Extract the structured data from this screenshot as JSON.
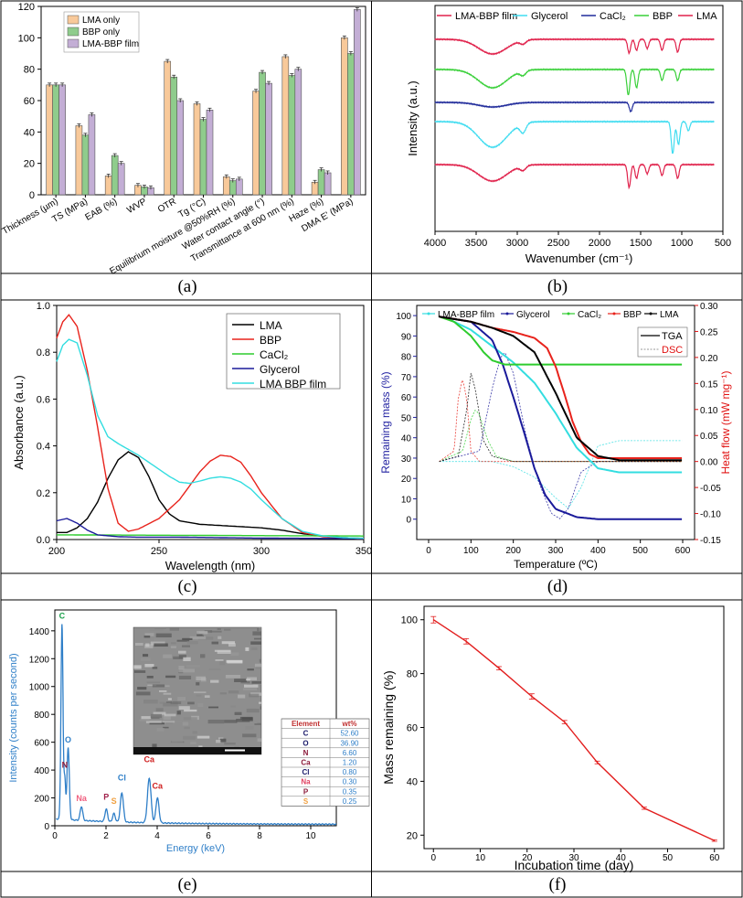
{
  "captions": [
    "(a)",
    "(b)",
    "(c)",
    "(d)",
    "(e)",
    "(f)"
  ],
  "colors": {
    "lma_only": "#f8c99a",
    "bbp_only": "#8fcc8c",
    "lma_bbp_film": "#c3aed5",
    "lma": "#000000",
    "bbp": "#e8231c",
    "cacl2": "#2ecc2e",
    "glycerol": "#1a1a9a",
    "film": "#33dde0",
    "ftir_lma": "#e0204a",
    "ftir_bbp": "#39d039",
    "ftir_cacl2": "#1f2a9a",
    "ftir_glycerol": "#3fdcf0",
    "ftir_film": "#e0204a",
    "tga_axis": "#1f1fa0",
    "dsc_axis": "#e01010",
    "eds_line": "#2f7fc8",
    "degr_line": "#e21d1d"
  },
  "chart_data": [
    {
      "id": "a",
      "type": "bar",
      "categories": [
        "Thickness (µm)",
        "TS (MPa)",
        "EAB (%)",
        "WVP",
        "OTR",
        "Tg (°C)",
        "Equilibrium moisture @50%RH (%)",
        "Water contact angle (°)",
        "Transmittance at 600 nm (%)",
        "Haze (%)",
        "DMA E' (MPa)"
      ],
      "series": [
        {
          "name": "LMA only",
          "values": [
            70,
            44,
            12,
            6,
            85,
            58,
            11.5,
            66,
            88,
            8,
            100
          ]
        },
        {
          "name": "BBP only",
          "values": [
            70,
            38,
            25,
            5,
            75,
            48,
            9,
            78,
            76,
            16,
            90
          ]
        },
        {
          "name": "LMA-BBP film",
          "values": [
            70,
            51,
            20,
            4.5,
            60,
            54,
            10,
            71,
            80,
            14,
            118
          ]
        }
      ],
      "ylim": [
        0,
        120
      ],
      "yticks": [
        0,
        20,
        40,
        60,
        80,
        100,
        120
      ],
      "legend": "top-left"
    },
    {
      "id": "b",
      "type": "line",
      "xlabel": "Wavenumber (cm⁻¹)",
      "ylabel": "Intensity (a.u.)",
      "xlim": [
        4000,
        500
      ],
      "xticks": [
        4000,
        3500,
        3000,
        2500,
        2000,
        1500,
        1000,
        500
      ],
      "series": [
        {
          "name": "LMA-BBP film"
        },
        {
          "name": "Glycerol"
        },
        {
          "name": "CaCl₂"
        },
        {
          "name": "BBP"
        },
        {
          "name": "LMA"
        }
      ],
      "legend": "top"
    },
    {
      "id": "c",
      "type": "line",
      "xlabel": "Wavelength (nm)",
      "ylabel": "Absorbance (a.u.)",
      "xlim": [
        200,
        350
      ],
      "ylim": [
        0,
        1.0
      ],
      "xticks": [
        200,
        250,
        300,
        350
      ],
      "yticks": [
        "0.0",
        "0.2",
        "0.4",
        "0.6",
        "0.8",
        "1.0"
      ],
      "series": [
        {
          "name": "LMA",
          "x": [
            200,
            205,
            210,
            215,
            220,
            225,
            230,
            235,
            240,
            245,
            250,
            255,
            260,
            270,
            280,
            290,
            300,
            310,
            320,
            330,
            340,
            350
          ],
          "y": [
            0.03,
            0.03,
            0.05,
            0.09,
            0.16,
            0.26,
            0.34,
            0.375,
            0.35,
            0.27,
            0.17,
            0.11,
            0.08,
            0.065,
            0.06,
            0.055,
            0.05,
            0.04,
            0.025,
            0.015,
            0.008,
            0.005
          ]
        },
        {
          "name": "BBP",
          "x": [
            200,
            203,
            206,
            210,
            215,
            220,
            225,
            230,
            235,
            240,
            250,
            260,
            270,
            275,
            280,
            285,
            290,
            295,
            300,
            310,
            320,
            330,
            340,
            350
          ],
          "y": [
            0.86,
            0.93,
            0.96,
            0.91,
            0.72,
            0.48,
            0.22,
            0.07,
            0.035,
            0.045,
            0.09,
            0.17,
            0.29,
            0.335,
            0.36,
            0.355,
            0.33,
            0.27,
            0.2,
            0.09,
            0.03,
            0.012,
            0.006,
            0.003
          ]
        },
        {
          "name": "CaCl₂",
          "x": [
            200,
            350
          ],
          "y": [
            0.02,
            0.015
          ]
        },
        {
          "name": "Glycerol",
          "x": [
            200,
            205,
            210,
            215,
            220,
            230,
            240,
            260,
            280,
            300,
            350
          ],
          "y": [
            0.08,
            0.09,
            0.07,
            0.04,
            0.02,
            0.012,
            0.01,
            0.01,
            0.008,
            0.006,
            0.004
          ]
        },
        {
          "name": "LMA BBP film",
          "x": [
            200,
            203,
            206,
            210,
            215,
            220,
            225,
            230,
            235,
            240,
            245,
            250,
            255,
            260,
            265,
            270,
            275,
            280,
            285,
            290,
            295,
            300,
            310,
            320,
            330,
            340,
            350
          ],
          "y": [
            0.76,
            0.83,
            0.855,
            0.84,
            0.7,
            0.53,
            0.44,
            0.41,
            0.385,
            0.36,
            0.33,
            0.3,
            0.27,
            0.245,
            0.24,
            0.25,
            0.262,
            0.268,
            0.262,
            0.245,
            0.215,
            0.17,
            0.09,
            0.035,
            0.015,
            0.008,
            0.005
          ]
        }
      ],
      "legend": "top-right"
    },
    {
      "id": "d",
      "type": "line",
      "xlabel": "Temperature (ºC)",
      "ylabel": "Remaining mass (%)",
      "ylabel2": "Heat flow (mW mg⁻¹)",
      "xlim": [
        0,
        600
      ],
      "ylim": [
        -10,
        105
      ],
      "ylim2": [
        -0.15,
        0.3
      ],
      "xticks": [
        0,
        100,
        200,
        300,
        400,
        500,
        600
      ],
      "yticks": [
        0,
        10,
        20,
        30,
        40,
        50,
        60,
        70,
        80,
        90,
        100
      ],
      "yticks2": [
        "-0.15",
        "-0.10",
        "-0.05",
        "0.00",
        "0.05",
        "0.10",
        "0.15",
        "0.20",
        "0.25",
        "0.30"
      ],
      "series_names": [
        "LMA-BBP film",
        "Glycerol",
        "CaCl₂",
        "BBP",
        "LMA"
      ],
      "tga": [
        {
          "name": "LMA-BBP film",
          "x": [
            25,
            50,
            100,
            150,
            200,
            250,
            300,
            350,
            400,
            450,
            500,
            600
          ],
          "y": [
            99.5,
            98,
            93,
            85,
            77,
            67,
            52,
            35,
            25,
            23,
            23,
            23
          ]
        },
        {
          "name": "Glycerol",
          "x": [
            25,
            100,
            150,
            175,
            200,
            225,
            250,
            275,
            300,
            350,
            400,
            600
          ],
          "y": [
            99.5,
            97,
            88,
            76,
            60,
            43,
            25,
            12,
            5,
            1,
            0,
            0
          ]
        },
        {
          "name": "CaCl₂",
          "x": [
            25,
            60,
            100,
            130,
            150,
            180,
            200,
            600
          ],
          "y": [
            99.5,
            97,
            90,
            82,
            78,
            76,
            76,
            76
          ]
        },
        {
          "name": "BBP",
          "x": [
            25,
            100,
            150,
            200,
            250,
            280,
            300,
            320,
            340,
            360,
            380,
            400,
            450,
            600
          ],
          "y": [
            99.5,
            97,
            94,
            92,
            89,
            84,
            75,
            62,
            48,
            38,
            32,
            30,
            30,
            30
          ]
        },
        {
          "name": "LMA",
          "x": [
            25,
            100,
            150,
            200,
            250,
            300,
            350,
            400,
            450,
            600
          ],
          "y": [
            99.5,
            97,
            94,
            90,
            82,
            62,
            40,
            31,
            29,
            29
          ]
        }
      ],
      "dsc": [
        {
          "name": "LMA-BBP film",
          "x": [
            25,
            150,
            200,
            250,
            300,
            330,
            360,
            400,
            450,
            600
          ],
          "y": [
            0.0,
            0.0,
            -0.01,
            -0.03,
            -0.07,
            -0.09,
            -0.05,
            0.03,
            0.04,
            0.04
          ]
        },
        {
          "name": "Glycerol",
          "x": [
            25,
            120,
            150,
            170,
            180,
            200,
            230,
            260,
            290,
            310,
            330,
            360,
            400,
            600
          ],
          "y": [
            0.0,
            0.02,
            0.14,
            0.2,
            0.21,
            0.17,
            0.05,
            -0.04,
            -0.1,
            -0.11,
            -0.09,
            -0.02,
            0.0,
            0.0
          ]
        },
        {
          "name": "CaCl₂",
          "x": [
            25,
            80,
            100,
            110,
            120,
            140,
            160,
            200,
            600
          ],
          "y": [
            0.0,
            0.02,
            0.08,
            0.1,
            0.09,
            0.04,
            0.01,
            0.0,
            0.0
          ]
        },
        {
          "name": "BBP",
          "x": [
            25,
            60,
            70,
            80,
            90,
            100,
            120,
            200,
            600
          ],
          "y": [
            0.0,
            0.02,
            0.12,
            0.16,
            0.12,
            0.02,
            0.0,
            0.0,
            0.0
          ]
        },
        {
          "name": "LMA",
          "x": [
            25,
            70,
            90,
            100,
            110,
            130,
            150,
            200,
            600
          ],
          "y": [
            0.0,
            0.01,
            0.1,
            0.17,
            0.14,
            0.04,
            0.01,
            0.0,
            0.0
          ]
        }
      ],
      "inner_legend": [
        "TGA",
        "DSC"
      ]
    },
    {
      "id": "e",
      "type": "line",
      "xlabel": "Energy (keV)",
      "ylabel": "Intensity (counts per second)",
      "xlim": [
        0,
        11
      ],
      "ylim": [
        0,
        1550
      ],
      "xticks": [
        0,
        2,
        4,
        6,
        8,
        10
      ],
      "yticks": [
        0,
        200,
        400,
        600,
        800,
        1000,
        1200,
        1400
      ],
      "peak_labels": [
        {
          "text": "C",
          "x": 0.28,
          "y": 1460,
          "color": "#1aa04a"
        },
        {
          "text": "O",
          "x": 0.52,
          "y": 570,
          "color": "#2f7fc8"
        },
        {
          "text": "N",
          "x": 0.39,
          "y": 390,
          "color": "#8b1a3a"
        },
        {
          "text": "Na",
          "x": 1.04,
          "y": 150,
          "color": "#f06080"
        },
        {
          "text": "P",
          "x": 2.01,
          "y": 160,
          "color": "#a0204a"
        },
        {
          "text": "S",
          "x": 2.31,
          "y": 130,
          "color": "#f0a040"
        },
        {
          "text": "Cl",
          "x": 2.62,
          "y": 300,
          "color": "#2f7fc8"
        },
        {
          "text": "Ca",
          "x": 3.69,
          "y": 430,
          "color": "#d02020"
        },
        {
          "text": "Ca",
          "x": 4.01,
          "y": 240,
          "color": "#d02020"
        }
      ],
      "table_headers": [
        "Element",
        "wt%"
      ],
      "table_rows": [
        {
          "el": "C",
          "wt": "52.60",
          "color": "#1a1a6a"
        },
        {
          "el": "O",
          "wt": "36.90",
          "color": "#1a1a6a"
        },
        {
          "el": "N",
          "wt": "6.60",
          "color": "#8b1a3a"
        },
        {
          "el": "Ca",
          "wt": "1.20",
          "color": "#8b1a3a"
        },
        {
          "el": "Cl",
          "wt": "0.80",
          "color": "#1a1a6a"
        },
        {
          "el": "Na",
          "wt": "0.30",
          "color": "#e04060"
        },
        {
          "el": "P",
          "wt": "0.35",
          "color": "#8b1a3a"
        },
        {
          "el": "S",
          "wt": "0.25",
          "color": "#f0a040"
        }
      ]
    },
    {
      "id": "f",
      "type": "line",
      "xlabel": "Incubation time (day)",
      "ylabel": "Mass remaining (%)",
      "xlim": [
        -2,
        62
      ],
      "ylim": [
        15,
        105
      ],
      "xticks": [
        0,
        10,
        20,
        30,
        40,
        50,
        60
      ],
      "yticks": [
        20,
        40,
        60,
        80,
        100
      ],
      "series": [
        {
          "x": [
            0,
            7,
            14,
            21,
            28,
            35,
            45,
            60
          ],
          "y": [
            100,
            92,
            82,
            71.5,
            62,
            47,
            30,
            18
          ],
          "err": [
            1.2,
            1.0,
            0.6,
            1.0,
            0.6,
            0.5,
            0.4,
            0.3
          ]
        }
      ]
    }
  ]
}
